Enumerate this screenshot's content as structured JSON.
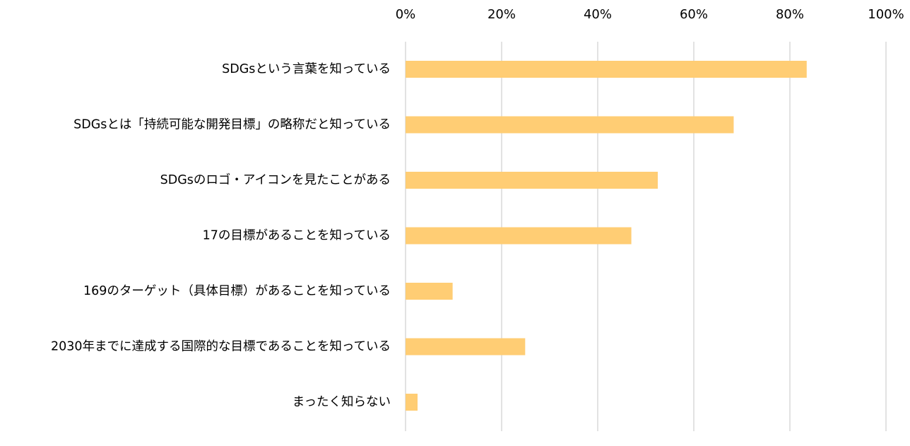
{
  "chart_data": {
    "type": "bar",
    "orientation": "horizontal",
    "categories": [
      "SDGsという言葉を知っている",
      "SDGsとは「持続可能な開発目標」の略称だと知っている",
      "SDGsのロゴ・アイコンを見たことがある",
      "17の目標があることを知っている",
      "169のターゲット（具体目標）があることを知っている",
      "2030年までに達成する国際的な目標であることを知っている",
      "まったく知らない"
    ],
    "values": [
      83.5,
      68.3,
      52.5,
      47.0,
      9.8,
      24.9,
      2.5
    ],
    "xlim": [
      0,
      100
    ],
    "x_ticks": [
      0,
      20,
      40,
      60,
      80,
      100
    ],
    "x_tick_labels": [
      "0%",
      "20%",
      "40%",
      "60%",
      "80%",
      "100%"
    ],
    "x_axis_position": "top",
    "grid": "vertical",
    "legend": "none",
    "title": "",
    "xlabel": "",
    "ylabel": "",
    "colors": {
      "bar": "#FFCD74",
      "grid": "#D9D9D9",
      "text": "#000000"
    }
  }
}
